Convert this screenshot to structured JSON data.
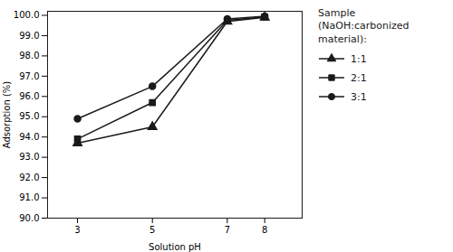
{
  "chart_data": {
    "type": "line",
    "x": [
      3,
      5,
      7,
      8
    ],
    "series": [
      {
        "name": "1:1",
        "values": [
          93.7,
          94.5,
          99.7,
          99.9
        ],
        "color": "#1a1a1a",
        "marker": "triangle",
        "line_style": "solid"
      },
      {
        "name": "2:1",
        "values": [
          93.9,
          95.7,
          99.75,
          99.92
        ],
        "color": "#1a1a1a",
        "marker": "square",
        "line_style": "solid"
      },
      {
        "name": "3:1",
        "values": [
          94.9,
          96.5,
          99.82,
          99.95
        ],
        "color": "#1a1a1a",
        "marker": "circle",
        "line_style": "solid"
      }
    ],
    "x_label": "Solution pH",
    "y_label": "Adsorption (%)",
    "xlim": [
      2.2,
      9.0
    ],
    "xticks": [
      3,
      5,
      7,
      8
    ],
    "ylim": [
      90.0,
      100.2
    ],
    "yticks": [
      {
        "value": 90.0,
        "label": "90.0"
      },
      {
        "value": 91.0,
        "label": "91.0"
      },
      {
        "value": 92.0,
        "label": "92.0"
      },
      {
        "value": 93.0,
        "label": "93.0"
      },
      {
        "value": 94.0,
        "label": "94.0"
      },
      {
        "value": 95.0,
        "label": "95.0"
      },
      {
        "value": 96.0,
        "label": "96.0"
      },
      {
        "value": 97.0,
        "label": "97.0"
      },
      {
        "value": 98.0,
        "label": "98.0"
      },
      {
        "value": 99.0,
        "label": "99.0"
      },
      {
        "value": 100.0,
        "label": "100.0"
      }
    ],
    "grid": false,
    "legend": "right",
    "legend_title": "Sample\n(NaOH:carbonized\nmaterial):"
  }
}
